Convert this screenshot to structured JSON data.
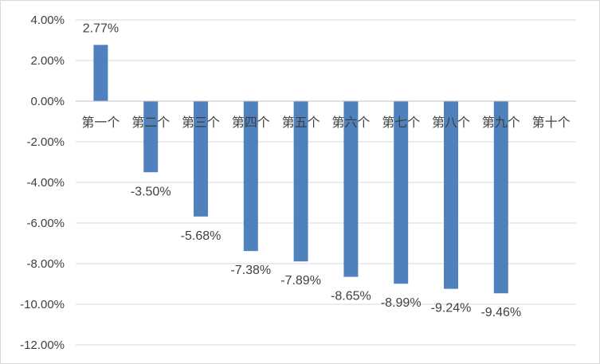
{
  "chart_data": {
    "type": "bar",
    "categories": [
      "第一个",
      "第二个",
      "第三个",
      "第四个",
      "第五个",
      "第六个",
      "第七个",
      "第八个",
      "第九个",
      "第十个"
    ],
    "values": [
      2.77,
      -3.5,
      -5.68,
      -7.38,
      -7.89,
      -8.65,
      -8.99,
      -9.24,
      -9.46,
      null
    ],
    "data_labels": [
      "2.77%",
      "-3.50%",
      "-5.68%",
      "-7.38%",
      "-7.89%",
      "-8.65%",
      "-8.99%",
      "-9.24%",
      "-9.46%",
      ""
    ],
    "title": "",
    "xlabel": "",
    "ylabel": "",
    "ylim": [
      -12,
      4
    ],
    "yticks": [
      4,
      2,
      0,
      -2,
      -4,
      -6,
      -8,
      -10,
      -12
    ],
    "ytick_labels": [
      "4.00%",
      "2.00%",
      "0.00%",
      "-2.00%",
      "-4.00%",
      "-6.00%",
      "-8.00%",
      "-10.00%",
      "-12.00%"
    ],
    "grid": true,
    "legend": "none",
    "colors": {
      "bar": "#4f81bd",
      "grid": "#d9d9d9",
      "axis": "#bfbfbf",
      "text": "#404040"
    }
  }
}
